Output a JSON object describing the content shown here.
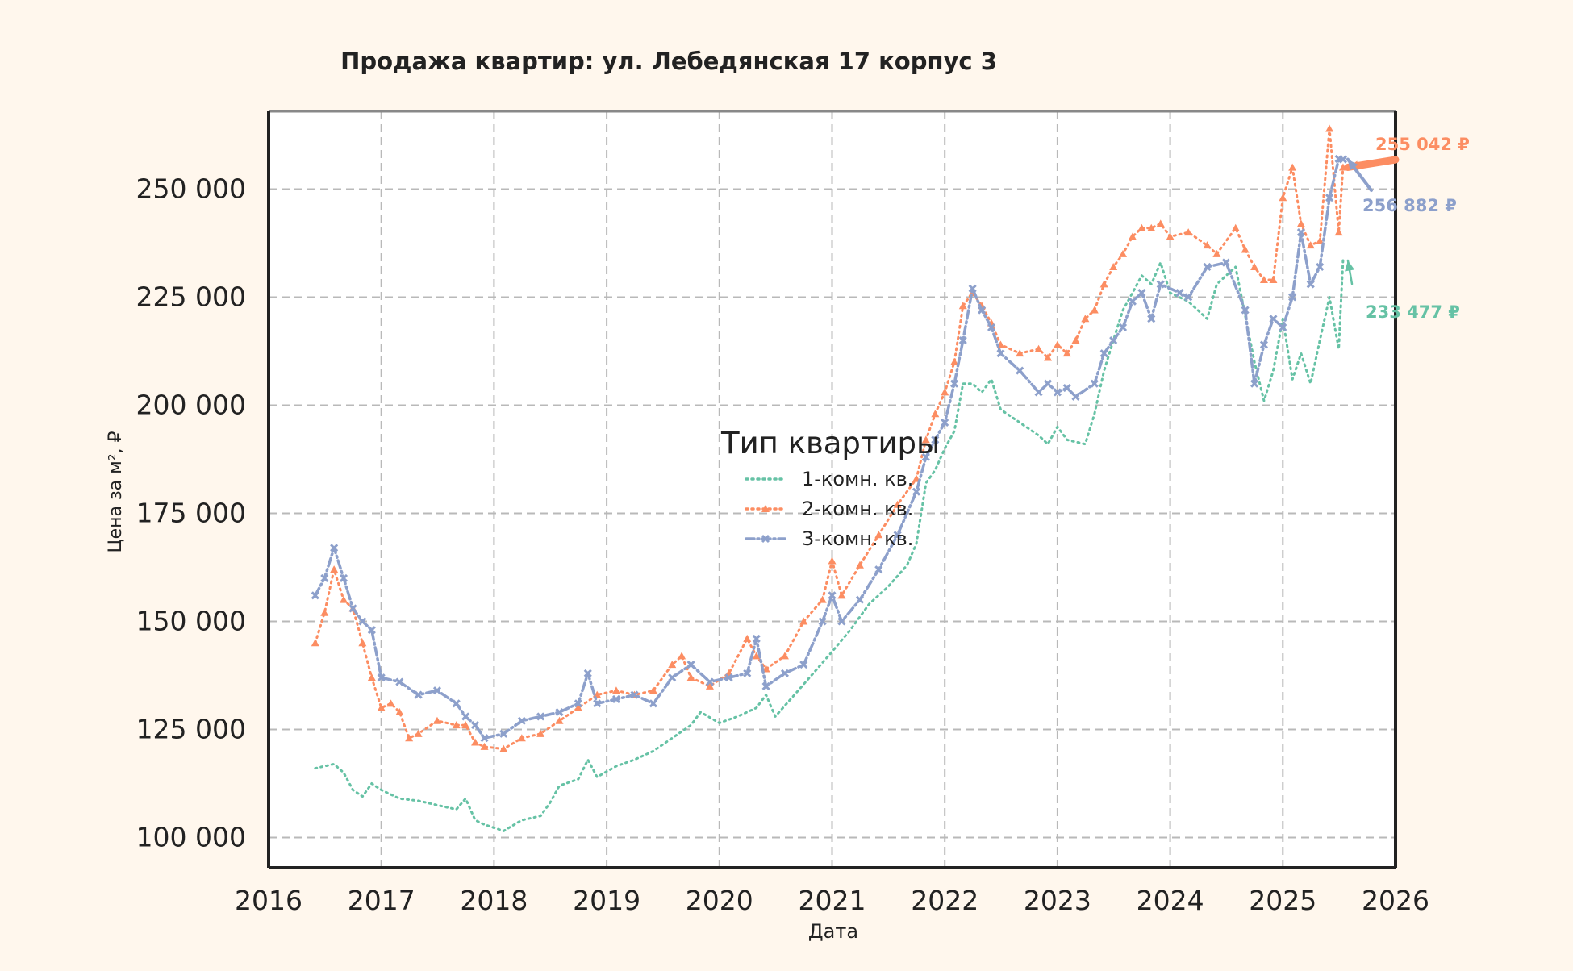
{
  "chart_data": {
    "type": "line",
    "title": "Продажа квартир: ул. Лебедянская 17 корпус 3",
    "xlabel": "Дата",
    "ylabel": "Цена за м², ₽",
    "xlim": [
      "2016-01-01",
      "2026-01-01"
    ],
    "ylim": [
      93000,
      268000
    ],
    "x_ticks": [
      "2016",
      "2017",
      "2018",
      "2019",
      "2020",
      "2021",
      "2022",
      "2023",
      "2024",
      "2025",
      "2026"
    ],
    "y_ticks": [
      100000,
      125000,
      150000,
      175000,
      200000,
      225000,
      250000
    ],
    "y_tick_labels": [
      "100 000",
      "125 000",
      "150 000",
      "175 000",
      "200 000",
      "225 000",
      "250 000"
    ],
    "grid": true,
    "legend": {
      "title": "Тип квартиры",
      "placement": "center"
    },
    "series": [
      {
        "name": "1-комн. кв.",
        "color": "#66c2a5",
        "line_style": "dotted",
        "marker": "none",
        "points": [
          [
            "2016-06-01",
            116000
          ],
          [
            "2016-07-01",
            116500
          ],
          [
            "2016-08-01",
            117000
          ],
          [
            "2016-09-01",
            115000
          ],
          [
            "2016-10-01",
            111000
          ],
          [
            "2016-11-01",
            109500
          ],
          [
            "2016-12-01",
            112500
          ],
          [
            "2017-01-01",
            111000
          ],
          [
            "2017-03-01",
            109000
          ],
          [
            "2017-05-01",
            108500
          ],
          [
            "2017-07-01",
            107500
          ],
          [
            "2017-09-01",
            106500
          ],
          [
            "2017-10-01",
            109000
          ],
          [
            "2017-11-01",
            104000
          ],
          [
            "2017-12-01",
            103000
          ],
          [
            "2018-02-01",
            101500
          ],
          [
            "2018-04-01",
            104000
          ],
          [
            "2018-06-01",
            105000
          ],
          [
            "2018-07-01",
            108000
          ],
          [
            "2018-08-01",
            112000
          ],
          [
            "2018-10-01",
            113500
          ],
          [
            "2018-11-01",
            118000
          ],
          [
            "2018-12-01",
            114000
          ],
          [
            "2019-02-01",
            116500
          ],
          [
            "2019-04-01",
            118000
          ],
          [
            "2019-06-01",
            120000
          ],
          [
            "2019-08-01",
            123000
          ],
          [
            "2019-10-01",
            126000
          ],
          [
            "2019-11-01",
            129000
          ],
          [
            "2020-01-01",
            126500
          ],
          [
            "2020-03-01",
            128000
          ],
          [
            "2020-05-01",
            130000
          ],
          [
            "2020-06-01",
            133000
          ],
          [
            "2020-07-01",
            128000
          ],
          [
            "2020-09-01",
            133000
          ],
          [
            "2020-11-01",
            138000
          ],
          [
            "2021-01-01",
            143000
          ],
          [
            "2021-03-01",
            148000
          ],
          [
            "2021-05-01",
            154000
          ],
          [
            "2021-07-01",
            158000
          ],
          [
            "2021-09-01",
            163000
          ],
          [
            "2021-10-01",
            168000
          ],
          [
            "2021-11-01",
            182000
          ],
          [
            "2021-12-01",
            185000
          ],
          [
            "2022-01-01",
            190000
          ],
          [
            "2022-02-01",
            194000
          ],
          [
            "2022-03-01",
            205000
          ],
          [
            "2022-04-01",
            205000
          ],
          [
            "2022-05-01",
            203000
          ],
          [
            "2022-06-01",
            206000
          ],
          [
            "2022-07-01",
            199000
          ],
          [
            "2022-09-01",
            196000
          ],
          [
            "2022-11-01",
            193000
          ],
          [
            "2022-12-01",
            191000
          ],
          [
            "2023-01-01",
            195000
          ],
          [
            "2023-02-01",
            192000
          ],
          [
            "2023-04-01",
            191000
          ],
          [
            "2023-05-01",
            198000
          ],
          [
            "2023-06-01",
            208000
          ],
          [
            "2023-07-01",
            215000
          ],
          [
            "2023-08-01",
            222000
          ],
          [
            "2023-09-01",
            226000
          ],
          [
            "2023-10-01",
            230000
          ],
          [
            "2023-11-01",
            228000
          ],
          [
            "2023-12-01",
            233000
          ],
          [
            "2024-01-01",
            226000
          ],
          [
            "2024-03-01",
            224000
          ],
          [
            "2024-05-01",
            220000
          ],
          [
            "2024-06-01",
            228000
          ],
          [
            "2024-08-01",
            232000
          ],
          [
            "2024-10-01",
            210000
          ],
          [
            "2024-11-01",
            201000
          ],
          [
            "2024-12-01",
            208000
          ],
          [
            "2025-01-01",
            220000
          ],
          [
            "2025-02-01",
            206000
          ],
          [
            "2025-03-01",
            212000
          ],
          [
            "2025-04-01",
            205000
          ],
          [
            "2025-05-01",
            215000
          ],
          [
            "2025-06-01",
            225000
          ],
          [
            "2025-07-01",
            213000
          ],
          [
            "2025-07-15",
            233477
          ]
        ]
      },
      {
        "name": "2-комн. кв.",
        "color": "#fc8d62",
        "line_style": "dotted",
        "marker": "triangle",
        "points": [
          [
            "2016-06-01",
            145000
          ],
          [
            "2016-07-01",
            152000
          ],
          [
            "2016-08-01",
            162000
          ],
          [
            "2016-09-01",
            155000
          ],
          [
            "2016-10-01",
            153000
          ],
          [
            "2016-11-01",
            145000
          ],
          [
            "2016-12-01",
            137000
          ],
          [
            "2017-01-01",
            130000
          ],
          [
            "2017-02-01",
            131000
          ],
          [
            "2017-03-01",
            129000
          ],
          [
            "2017-04-01",
            123000
          ],
          [
            "2017-05-01",
            124000
          ],
          [
            "2017-07-01",
            127000
          ],
          [
            "2017-09-01",
            126000
          ],
          [
            "2017-10-01",
            126000
          ],
          [
            "2017-11-01",
            122000
          ],
          [
            "2017-12-01",
            121000
          ],
          [
            "2018-02-01",
            120500
          ],
          [
            "2018-04-01",
            123000
          ],
          [
            "2018-06-01",
            124000
          ],
          [
            "2018-08-01",
            127000
          ],
          [
            "2018-10-01",
            130000
          ],
          [
            "2018-12-01",
            133000
          ],
          [
            "2019-02-01",
            134000
          ],
          [
            "2019-04-01",
            133000
          ],
          [
            "2019-06-01",
            134000
          ],
          [
            "2019-08-01",
            140000
          ],
          [
            "2019-09-01",
            142000
          ],
          [
            "2019-10-01",
            137000
          ],
          [
            "2019-12-01",
            135000
          ],
          [
            "2020-02-01",
            138000
          ],
          [
            "2020-04-01",
            146000
          ],
          [
            "2020-05-01",
            142000
          ],
          [
            "2020-06-01",
            139000
          ],
          [
            "2020-08-01",
            142000
          ],
          [
            "2020-10-01",
            150000
          ],
          [
            "2020-12-01",
            155000
          ],
          [
            "2021-01-01",
            164000
          ],
          [
            "2021-02-01",
            156000
          ],
          [
            "2021-04-01",
            163000
          ],
          [
            "2021-06-01",
            170000
          ],
          [
            "2021-08-01",
            177000
          ],
          [
            "2021-10-01",
            183000
          ],
          [
            "2021-11-01",
            192000
          ],
          [
            "2021-12-01",
            198000
          ],
          [
            "2022-01-01",
            203000
          ],
          [
            "2022-02-01",
            210000
          ],
          [
            "2022-03-01",
            223000
          ],
          [
            "2022-04-01",
            226000
          ],
          [
            "2022-05-01",
            223000
          ],
          [
            "2022-06-01",
            219000
          ],
          [
            "2022-07-01",
            214000
          ],
          [
            "2022-09-01",
            212000
          ],
          [
            "2022-11-01",
            213000
          ],
          [
            "2022-12-01",
            211000
          ],
          [
            "2023-01-01",
            214000
          ],
          [
            "2023-02-01",
            212000
          ],
          [
            "2023-03-01",
            215000
          ],
          [
            "2023-04-01",
            220000
          ],
          [
            "2023-05-01",
            222000
          ],
          [
            "2023-06-01",
            228000
          ],
          [
            "2023-07-01",
            232000
          ],
          [
            "2023-08-01",
            235000
          ],
          [
            "2023-09-01",
            239000
          ],
          [
            "2023-10-01",
            241000
          ],
          [
            "2023-11-01",
            241000
          ],
          [
            "2023-12-01",
            242000
          ],
          [
            "2024-01-01",
            239000
          ],
          [
            "2024-03-01",
            240000
          ],
          [
            "2024-05-01",
            237000
          ],
          [
            "2024-06-01",
            235000
          ],
          [
            "2024-08-01",
            241000
          ],
          [
            "2024-09-01",
            236000
          ],
          [
            "2024-10-01",
            232000
          ],
          [
            "2024-11-01",
            229000
          ],
          [
            "2024-12-01",
            229000
          ],
          [
            "2025-01-01",
            248000
          ],
          [
            "2025-02-01",
            255000
          ],
          [
            "2025-03-01",
            242000
          ],
          [
            "2025-04-01",
            237000
          ],
          [
            "2025-05-01",
            238000
          ],
          [
            "2025-06-01",
            264000
          ],
          [
            "2025-07-01",
            240000
          ],
          [
            "2025-07-15",
            255042
          ]
        ]
      },
      {
        "name": "3-комн. кв.",
        "color": "#8da0cb",
        "line_style": "dashdot",
        "marker": "x",
        "points": [
          [
            "2016-06-01",
            156000
          ],
          [
            "2016-07-01",
            160000
          ],
          [
            "2016-08-01",
            167000
          ],
          [
            "2016-09-01",
            160000
          ],
          [
            "2016-10-01",
            153000
          ],
          [
            "2016-11-01",
            150000
          ],
          [
            "2016-12-01",
            148000
          ],
          [
            "2017-01-01",
            137000
          ],
          [
            "2017-03-01",
            136000
          ],
          [
            "2017-05-01",
            133000
          ],
          [
            "2017-07-01",
            134000
          ],
          [
            "2017-09-01",
            131000
          ],
          [
            "2017-10-01",
            128000
          ],
          [
            "2017-11-01",
            126000
          ],
          [
            "2017-12-01",
            123000
          ],
          [
            "2018-02-01",
            124000
          ],
          [
            "2018-04-01",
            127000
          ],
          [
            "2018-06-01",
            128000
          ],
          [
            "2018-08-01",
            129000
          ],
          [
            "2018-10-01",
            131000
          ],
          [
            "2018-11-01",
            138000
          ],
          [
            "2018-12-01",
            131000
          ],
          [
            "2019-02-01",
            132000
          ],
          [
            "2019-04-01",
            133000
          ],
          [
            "2019-06-01",
            131000
          ],
          [
            "2019-08-01",
            137000
          ],
          [
            "2019-10-01",
            140000
          ],
          [
            "2019-12-01",
            136000
          ],
          [
            "2020-02-01",
            137000
          ],
          [
            "2020-04-01",
            138000
          ],
          [
            "2020-05-01",
            146000
          ],
          [
            "2020-06-01",
            135000
          ],
          [
            "2020-08-01",
            138000
          ],
          [
            "2020-10-01",
            140000
          ],
          [
            "2020-12-01",
            150000
          ],
          [
            "2021-01-01",
            156000
          ],
          [
            "2021-02-01",
            150000
          ],
          [
            "2021-04-01",
            155000
          ],
          [
            "2021-06-01",
            162000
          ],
          [
            "2021-08-01",
            170000
          ],
          [
            "2021-10-01",
            180000
          ],
          [
            "2021-11-01",
            188000
          ],
          [
            "2021-12-01",
            192000
          ],
          [
            "2022-01-01",
            196000
          ],
          [
            "2022-02-01",
            205000
          ],
          [
            "2022-03-01",
            215000
          ],
          [
            "2022-04-01",
            227000
          ],
          [
            "2022-05-01",
            222000
          ],
          [
            "2022-06-01",
            218000
          ],
          [
            "2022-07-01",
            212000
          ],
          [
            "2022-09-01",
            208000
          ],
          [
            "2022-11-01",
            203000
          ],
          [
            "2022-12-01",
            205000
          ],
          [
            "2023-01-01",
            203000
          ],
          [
            "2023-02-01",
            204000
          ],
          [
            "2023-03-01",
            202000
          ],
          [
            "2023-05-01",
            205000
          ],
          [
            "2023-06-01",
            212000
          ],
          [
            "2023-07-01",
            215000
          ],
          [
            "2023-08-01",
            218000
          ],
          [
            "2023-09-01",
            224000
          ],
          [
            "2023-10-01",
            226000
          ],
          [
            "2023-11-01",
            220000
          ],
          [
            "2023-12-01",
            228000
          ],
          [
            "2024-02-01",
            226000
          ],
          [
            "2024-03-01",
            225000
          ],
          [
            "2024-05-01",
            232000
          ],
          [
            "2024-07-01",
            233000
          ],
          [
            "2024-09-01",
            222000
          ],
          [
            "2024-10-01",
            205000
          ],
          [
            "2024-11-01",
            214000
          ],
          [
            "2024-12-01",
            220000
          ],
          [
            "2025-01-01",
            218000
          ],
          [
            "2025-02-01",
            225000
          ],
          [
            "2025-03-01",
            240000
          ],
          [
            "2025-04-01",
            228000
          ],
          [
            "2025-05-01",
            232000
          ],
          [
            "2025-06-01",
            248000
          ],
          [
            "2025-07-01",
            257000
          ],
          [
            "2025-07-15",
            256882
          ]
        ]
      }
    ],
    "annotations": [
      {
        "text": "255 042 ₽",
        "series": "2-комн. кв.",
        "x": "2025-07-15",
        "y": 255042
      },
      {
        "text": "256 882 ₽",
        "series": "3-комн. кв.",
        "x": "2025-07-15",
        "y": 256882
      },
      {
        "text": "233 477 ₽",
        "series": "1-комн. кв.",
        "x": "2025-07-15",
        "y": 233477
      }
    ]
  }
}
